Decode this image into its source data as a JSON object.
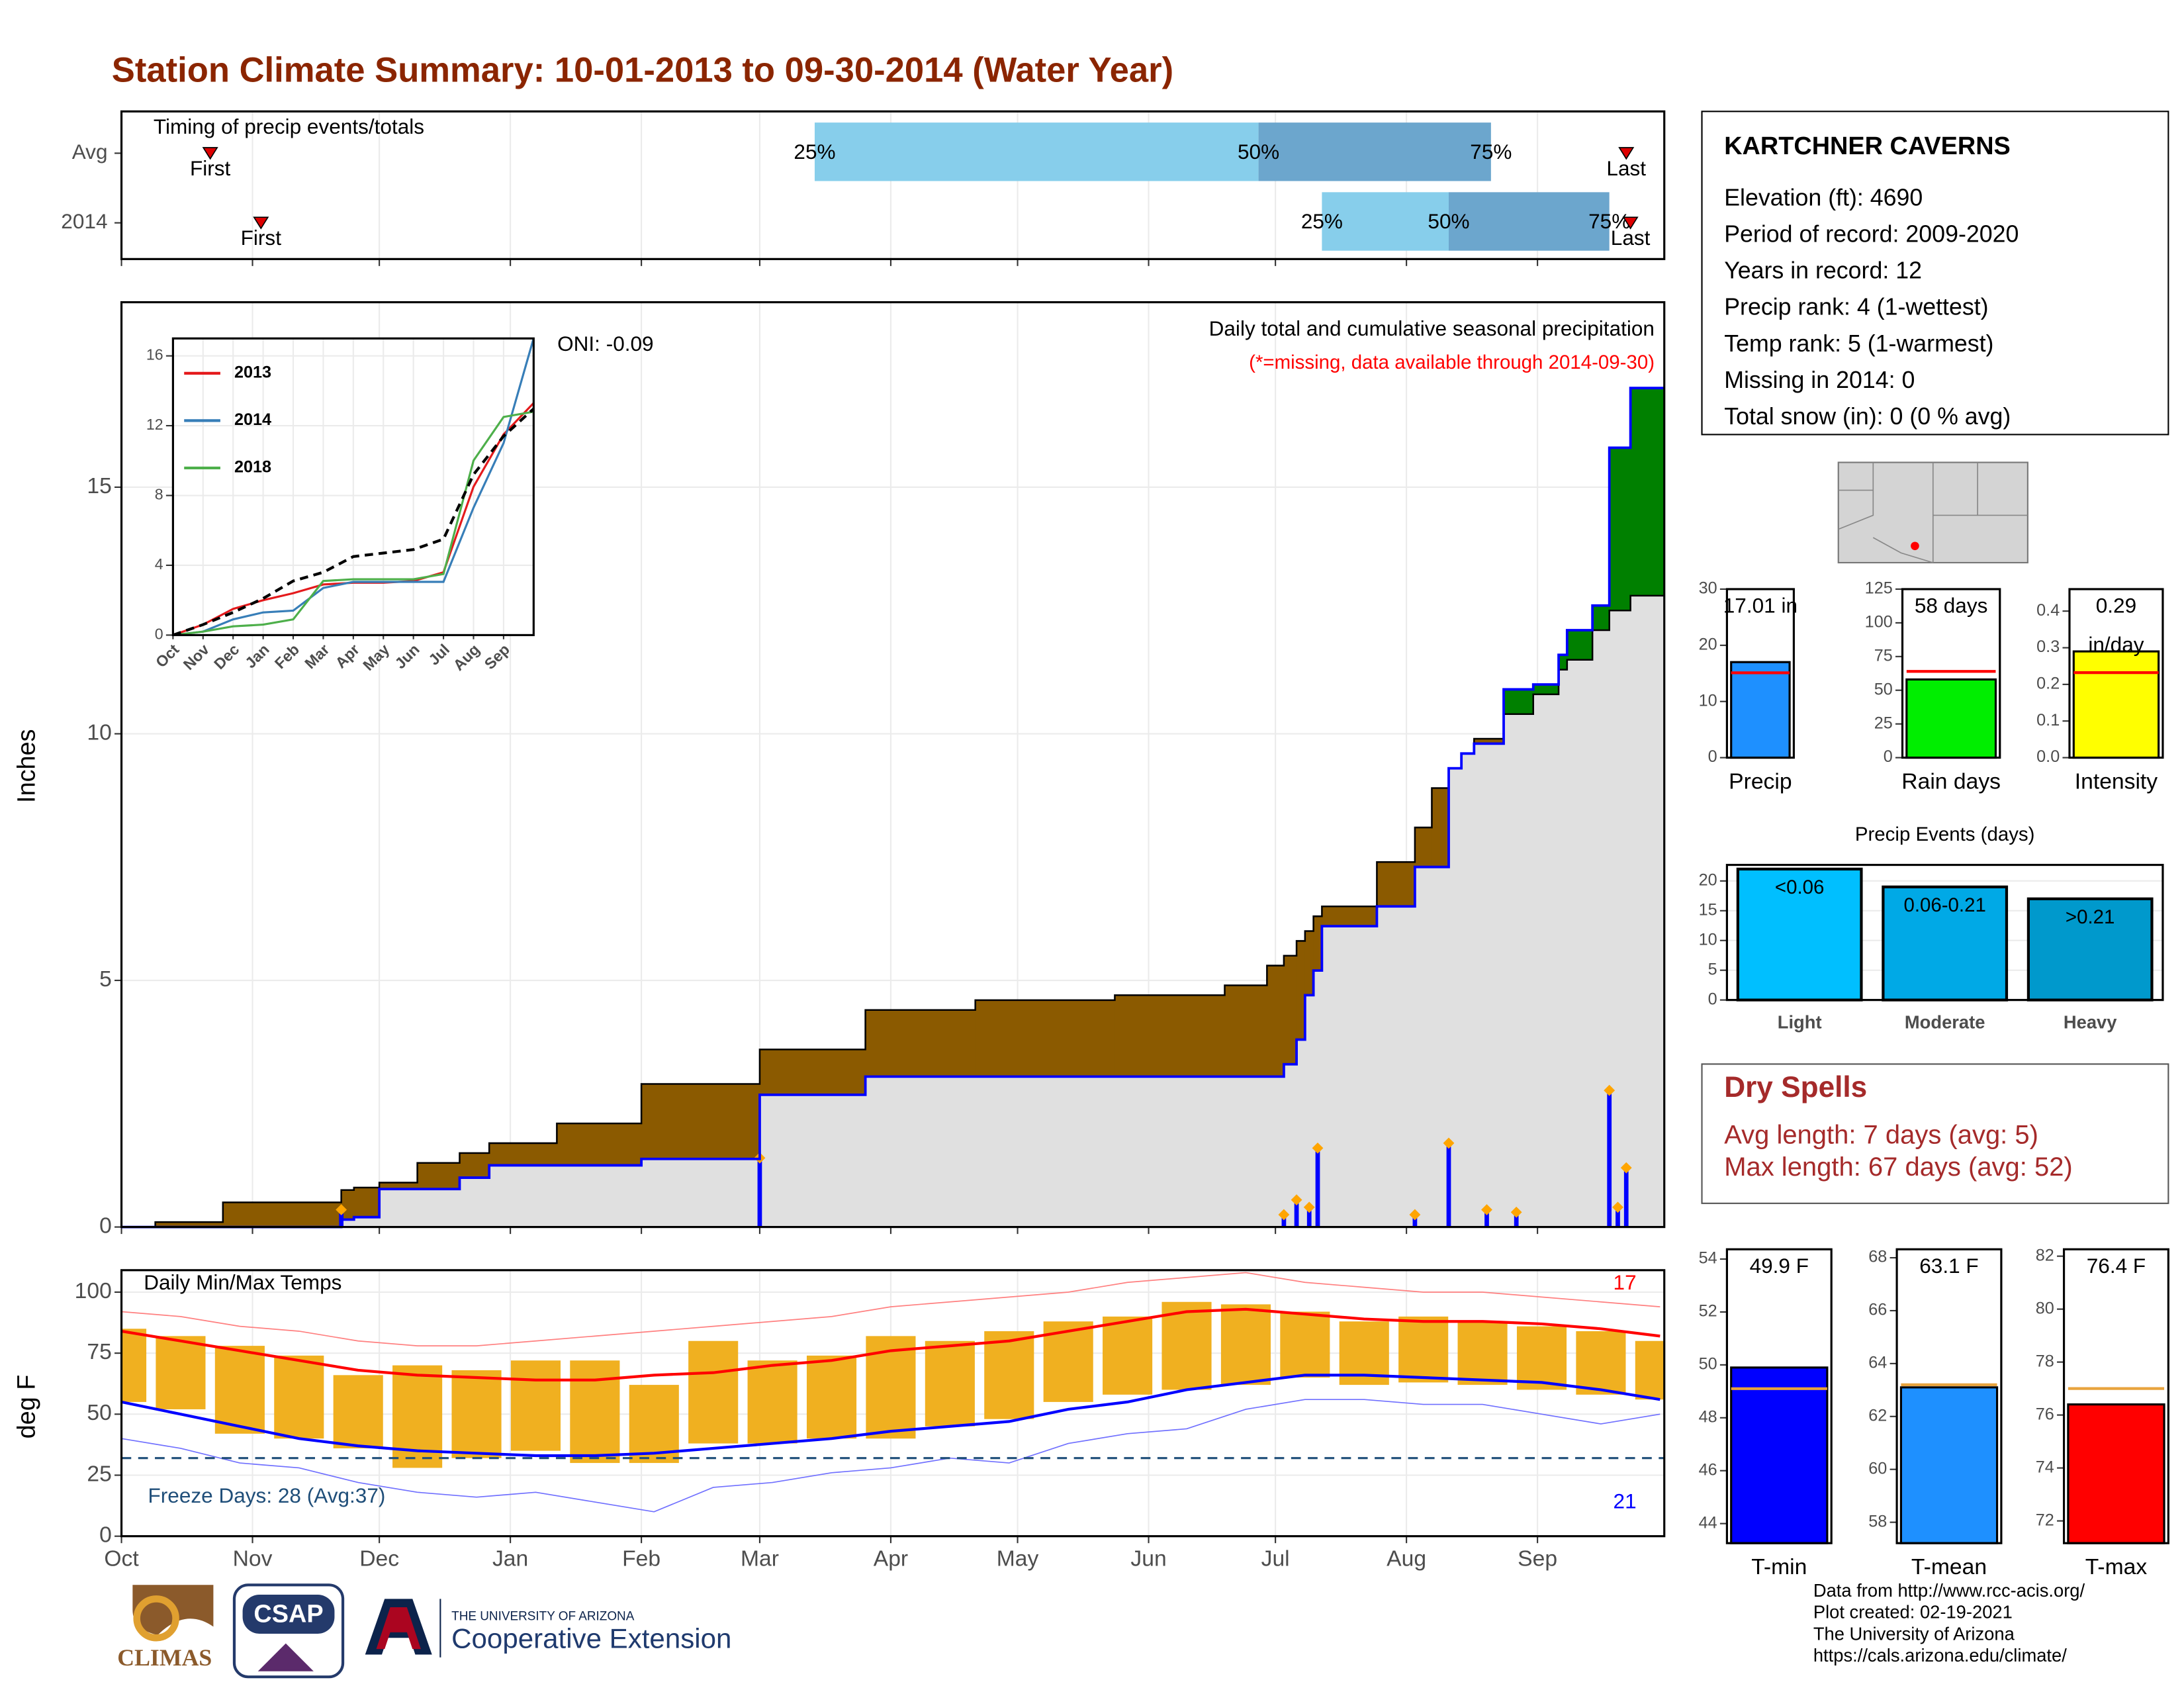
{
  "title": "Station Climate Summary: 10-01-2013 to 09-30-2014 (Water Year)",
  "chart_data": [
    {
      "type": "timing",
      "title": "Timing of precip events/totals",
      "categories": [
        "Avg",
        "2014"
      ],
      "first": [
        21,
        33
      ],
      "q25": [
        164,
        284
      ],
      "q50": [
        269,
        314
      ],
      "q75": [
        324,
        352
      ],
      "last": [
        356,
        357
      ],
      "first_label": "First",
      "last_label": "Last",
      "quartile_labels": [
        "25%",
        "50%",
        "75%"
      ],
      "colors": [
        "#87ceeb",
        "#6ca6cd"
      ],
      "marker_color": "#dd0000",
      "xlim": [
        0,
        365
      ],
      "xticks": [
        0,
        31,
        61,
        92,
        123,
        151,
        182,
        212,
        243,
        273,
        304,
        335
      ],
      "grid": true
    },
    {
      "type": "cumulative",
      "subtitle": "Daily total and cumulative seasonal precipitation",
      "note": "(*=missing, data available through 2014-09-30)",
      "oni": "ONI: -0.09",
      "ylabel": "Inches",
      "x": [
        0,
        8,
        24,
        52,
        55,
        61,
        70,
        80,
        87,
        103,
        123,
        151,
        176,
        202,
        235,
        261,
        271,
        275,
        278,
        280,
        282,
        284,
        297,
        306,
        310,
        314,
        317,
        320,
        327,
        334,
        340,
        342,
        348,
        352,
        357,
        365
      ],
      "series": [
        {
          "color": "#000000",
          "values": [
            0,
            0.1,
            0.5,
            0.75,
            0.8,
            0.9,
            1.3,
            1.5,
            1.7,
            2.1,
            2.9,
            3.6,
            4.4,
            4.6,
            4.7,
            4.9,
            5.3,
            5.5,
            5.8,
            6.0,
            6.3,
            6.5,
            7.4,
            8.1,
            8.9,
            9.3,
            9.6,
            9.9,
            10.4,
            10.8,
            11.3,
            11.5,
            12.1,
            12.5,
            12.8,
            12.97
          ]
        },
        {
          "color": "#0000ff",
          "values": [
            0,
            0,
            0,
            0.15,
            0.2,
            0.77,
            0.77,
            1.0,
            1.25,
            1.25,
            1.38,
            2.68,
            3.05,
            3.05,
            3.05,
            3.05,
            3.05,
            3.3,
            3.8,
            4.7,
            5.2,
            6.1,
            6.5,
            7.3,
            7.3,
            9.3,
            9.6,
            9.8,
            10.9,
            11.0,
            11.6,
            12.1,
            12.6,
            15.8,
            17.01,
            17.01
          ]
        }
      ],
      "fill_colors": {
        "base": "#e0e0e0",
        "below": "#8b5a00",
        "above": "#008000"
      },
      "daily": {
        "x": [
          52,
          151,
          275,
          278,
          281,
          283,
          306,
          314,
          323,
          330,
          352,
          354,
          356
        ],
        "values": [
          0.35,
          1.4,
          0.25,
          0.55,
          0.4,
          1.6,
          0.25,
          1.7,
          0.35,
          0.3,
          2.77,
          0.4,
          1.2
        ],
        "color": "#0000ff",
        "marker_color": "#ffa500"
      },
      "xlim": [
        0,
        365
      ],
      "xticks": [
        0,
        31,
        61,
        92,
        123,
        151,
        182,
        212,
        243,
        273,
        304,
        335
      ],
      "ylim": [
        0,
        18.75
      ],
      "yticks": [
        0,
        5,
        10,
        15
      ],
      "grid": true
    },
    {
      "type": "line",
      "x": [
        0,
        1,
        2,
        3,
        4,
        5,
        6,
        7,
        8,
        9,
        10,
        11,
        12
      ],
      "series": [
        {
          "name": "2013",
          "color": "#e41a1c",
          "values": [
            0,
            0.6,
            1.5,
            2.0,
            2.4,
            2.9,
            3.0,
            3.0,
            3.1,
            3.6,
            8.5,
            11.5,
            13.3
          ]
        },
        {
          "name": "2014",
          "color": "#377eb8",
          "values": [
            0,
            0.2,
            0.9,
            1.3,
            1.4,
            2.7,
            3.05,
            3.05,
            3.05,
            3.05,
            7.3,
            11.0,
            17.01
          ]
        },
        {
          "name": "2018",
          "color": "#4daf4a",
          "values": [
            0,
            0.2,
            0.5,
            0.6,
            0.9,
            3.1,
            3.2,
            3.2,
            3.2,
            3.5,
            10.0,
            12.5,
            12.8
          ]
        },
        {
          "color": "#000000",
          "dashed": true,
          "values": [
            0,
            0.6,
            1.3,
            2.1,
            3.1,
            3.6,
            4.5,
            4.7,
            4.9,
            5.5,
            9.2,
            11.4,
            12.97
          ]
        }
      ],
      "xlim": [
        0,
        12
      ],
      "xticks": [
        {
          "value": 0,
          "label": "Oct"
        },
        {
          "value": 1,
          "label": "Nov"
        },
        {
          "value": 2,
          "label": "Dec"
        },
        {
          "value": 3,
          "label": "Jan"
        },
        {
          "value": 4,
          "label": "Feb"
        },
        {
          "value": 5,
          "label": "Mar"
        },
        {
          "value": 6,
          "label": "Apr"
        },
        {
          "value": 7,
          "label": "May"
        },
        {
          "value": 8,
          "label": "Jun"
        },
        {
          "value": 9,
          "label": "Jul"
        },
        {
          "value": 10,
          "label": "Aug"
        },
        {
          "value": 11,
          "label": "Sep"
        }
      ],
      "ylim": [
        0,
        17
      ],
      "yticks": [
        0,
        4,
        8,
        12,
        16
      ],
      "grid": true
    },
    {
      "type": "temps",
      "title": "Daily Min/Max Temps",
      "ylabel": "deg F",
      "x": [
        0,
        14,
        28,
        42,
        56,
        70,
        84,
        98,
        112,
        126,
        140,
        154,
        168,
        182,
        196,
        210,
        224,
        238,
        252,
        266,
        280,
        294,
        308,
        322,
        336,
        350,
        364
      ],
      "bars": {
        "color": "#f0b020",
        "max": [
          85,
          82,
          78,
          74,
          66,
          70,
          68,
          72,
          72,
          62,
          80,
          72,
          74,
          82,
          80,
          84,
          88,
          90,
          96,
          95,
          92,
          88,
          90,
          88,
          86,
          84,
          80
        ],
        "min": [
          55,
          52,
          42,
          40,
          36,
          28,
          32,
          35,
          30,
          30,
          38,
          38,
          40,
          40,
          45,
          48,
          55,
          58,
          60,
          62,
          65,
          62,
          63,
          62,
          60,
          58,
          56
        ]
      },
      "normal_max": {
        "color": "#ff0000",
        "values": [
          84,
          80,
          76,
          72,
          68,
          66,
          65,
          64,
          64,
          66,
          67,
          70,
          72,
          76,
          78,
          80,
          84,
          88,
          92,
          93,
          91,
          89,
          88,
          88,
          87,
          85,
          82
        ]
      },
      "normal_min": {
        "color": "#0000ff",
        "values": [
          55,
          50,
          45,
          40,
          37,
          35,
          34,
          33,
          33,
          34,
          36,
          38,
          40,
          43,
          45,
          47,
          52,
          55,
          60,
          63,
          66,
          66,
          65,
          64,
          63,
          60,
          56
        ]
      },
      "record_high": {
        "color": "#ff8080",
        "values": [
          92,
          90,
          86,
          84,
          80,
          78,
          78,
          80,
          82,
          84,
          86,
          88,
          90,
          94,
          96,
          98,
          100,
          104,
          106,
          108,
          104,
          102,
          100,
          100,
          98,
          96,
          94
        ]
      },
      "record_low": {
        "color": "#7070ff",
        "values": [
          40,
          36,
          30,
          28,
          22,
          18,
          16,
          18,
          14,
          10,
          20,
          22,
          26,
          28,
          32,
          30,
          38,
          42,
          44,
          52,
          56,
          56,
          54,
          54,
          50,
          46,
          50
        ]
      },
      "freeze_line": {
        "value": 32,
        "color": "#1f4e79"
      },
      "freeze_text": "Freeze Days: 28 (Avg:37)",
      "counts": [
        {
          "value": 17,
          "color": "#ff0000"
        },
        {
          "value": 21,
          "color": "#0000ff"
        }
      ],
      "xlim": [
        0,
        365
      ],
      "xticks": [
        {
          "value": 0,
          "label": "Oct"
        },
        {
          "value": 31,
          "label": "Nov"
        },
        {
          "value": 61,
          "label": "Dec"
        },
        {
          "value": 92,
          "label": "Jan"
        },
        {
          "value": 123,
          "label": "Feb"
        },
        {
          "value": 151,
          "label": "Mar"
        },
        {
          "value": 182,
          "label": "Apr"
        },
        {
          "value": 212,
          "label": "May"
        },
        {
          "value": 243,
          "label": "Jun"
        },
        {
          "value": 273,
          "label": "Jul"
        },
        {
          "value": 304,
          "label": "Aug"
        },
        {
          "value": 335,
          "label": "Sep"
        }
      ],
      "ylim": [
        0,
        109
      ],
      "yticks": [
        0,
        25,
        50,
        75,
        100
      ],
      "grid": true
    },
    {
      "type": "stat",
      "category": "Precip",
      "value": 17.01,
      "value_label": [
        "17.01 in"
      ],
      "average": 15.1,
      "color": "#1e90ff",
      "average_color": "#ff0000",
      "ylim": [
        0,
        30
      ],
      "yticks": [
        0,
        10,
        20,
        30
      ]
    },
    {
      "type": "stat",
      "category": "Rain days",
      "value": 58,
      "value_label": [
        "58 days"
      ],
      "average": 64,
      "color": "#00ee00",
      "average_color": "#ff0000",
      "ylim": [
        0,
        125
      ],
      "yticks": [
        0,
        25,
        50,
        75,
        100,
        125
      ]
    },
    {
      "type": "stat",
      "category": "Intensity",
      "value": 0.29,
      "value_label": [
        "0.29",
        "in/day"
      ],
      "average": 0.232,
      "color": "#ffff00",
      "average_color": "#ff0000",
      "ylim": [
        0,
        0.46
      ],
      "yticks": [
        {
          "value": 0,
          "label": "0.0"
        },
        0.1,
        0.2,
        0.3,
        0.4
      ]
    },
    {
      "type": "bar",
      "title": "Precip Events (days)",
      "categories": [
        "Light",
        "Moderate",
        "Heavy"
      ],
      "values": [
        22,
        19,
        17
      ],
      "value_labels": [
        "<0.06",
        "0.06-0.21",
        ">0.21"
      ],
      "colors": [
        "#00bfff",
        "#00a9e6",
        "#0099cc"
      ],
      "ylim": [
        0,
        22.7
      ],
      "yticks": [
        0,
        5,
        10,
        15,
        20
      ],
      "grid": true
    },
    {
      "type": "stat",
      "category": "T-min",
      "value": 49.9,
      "value_label": [
        "49.9 F"
      ],
      "average": 49.1,
      "color": "#0000ff",
      "average_color": "#e8a33d",
      "ylim": [
        43.26,
        54.37
      ],
      "yticks": [
        44,
        46,
        48,
        50,
        52,
        54
      ]
    },
    {
      "type": "stat",
      "category": "T-mean",
      "value": 63.1,
      "value_label": [
        "63.1 F"
      ],
      "average": 63.2,
      "color": "#1e90ff",
      "average_color": "#e8a33d",
      "ylim": [
        57.21,
        68.32
      ],
      "yticks": [
        58,
        60,
        62,
        64,
        66,
        68
      ]
    },
    {
      "type": "stat",
      "category": "T-max",
      "value": 76.4,
      "value_label": [
        "76.4 F"
      ],
      "average": 77.0,
      "color": "#ff0000",
      "average_color": "#e8a33d",
      "ylim": [
        71.16,
        82.26
      ],
      "yticks": [
        72,
        74,
        76,
        78,
        80,
        82
      ]
    }
  ],
  "station": {
    "name": "KARTCHNER CAVERNS",
    "lines": [
      "Elevation (ft): 4690",
      "Period of record: 2009-2020",
      "Years in record: 12",
      "Precip rank: 4 (1-wettest)",
      "Temp rank: 5 (1-warmest)",
      "Missing in 2014: 0",
      "Total snow (in): 0 (0 % avg)"
    ]
  },
  "dry_spells": {
    "title": "Dry Spells",
    "lines": [
      "Avg length: 7 days (avg: 5)",
      "Max length: 67 days (avg: 52)"
    ]
  },
  "footer": [
    "Data from http://www.rcc-acis.org/",
    "Plot created: 02-19-2021",
    "The University of Arizona",
    "https://cals.arizona.edu/climate/"
  ],
  "logos": {
    "climas": "CLIMAS",
    "csap": "CSAP",
    "university": "THE UNIVERSITY OF ARIZONA",
    "extension": "Cooperative Extension"
  }
}
